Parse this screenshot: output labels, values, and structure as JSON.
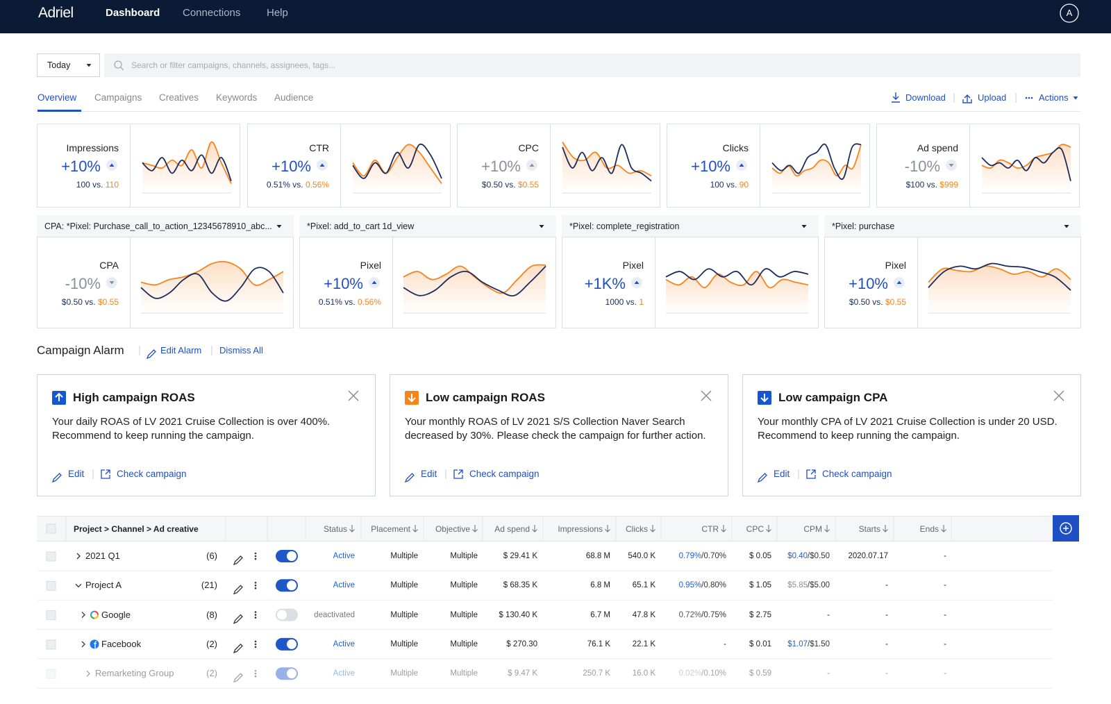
{
  "nav": {
    "brand": "Adriel",
    "items": [
      "Dashboard",
      "Connections",
      "Help"
    ],
    "active": 0,
    "avatar": "A"
  },
  "filter": {
    "date": "Today",
    "search_placeholder": "Search or filter campaigns, channels, assignees, tags..."
  },
  "tabs": {
    "items": [
      "Overview",
      "Campaigns",
      "Creatives",
      "Keywords",
      "Audience"
    ],
    "active": 0,
    "actions": [
      "Download",
      "Upload",
      "Actions"
    ]
  },
  "vs_label": "vs.",
  "sparkline_ylim": [
    0,
    100
  ],
  "sparkline_colors": {
    "current": "#1c2b5e",
    "previous": "#f5841f"
  },
  "kpi_cards": [
    {
      "label": "Impressions",
      "change": "+10%",
      "change_color": "#1f4fc4",
      "direction": "up",
      "current": "100",
      "previous": "110",
      "spark": {
        "current": [
          50,
          35,
          60,
          30,
          55,
          35,
          65,
          30,
          60,
          15
        ],
        "previous": [
          50,
          45,
          40,
          55,
          45,
          75,
          40,
          90,
          50,
          10
        ]
      }
    },
    {
      "label": "CTR",
      "change": "+10%",
      "change_color": "#1f4fc4",
      "direction": "up",
      "current": "0.51%",
      "previous": "0.56%",
      "spark": {
        "current": [
          45,
          20,
          50,
          30,
          70,
          40,
          85,
          65,
          20
        ],
        "previous": [
          50,
          25,
          55,
          30,
          60,
          85,
          70,
          40,
          10
        ]
      }
    },
    {
      "label": "CPC",
      "change": "+10%",
      "change_color": "#8a8f99",
      "direction": "up",
      "current": "$0.50",
      "previous": "$0.55",
      "spark": {
        "current": [
          80,
          40,
          70,
          35,
          60,
          30,
          85,
          40,
          30,
          15
        ],
        "previous": [
          90,
          60,
          55,
          70,
          40,
          45,
          30,
          35,
          25
        ]
      }
    },
    {
      "label": "Clicks",
      "change": "+10%",
      "change_color": "#1f4fc4",
      "direction": "up",
      "current": "100",
      "previous": "90",
      "spark": {
        "current": [
          50,
          35,
          45,
          30,
          60,
          70,
          85,
          40,
          20,
          80,
          85
        ],
        "previous": [
          40,
          30,
          45,
          25,
          35,
          40,
          55,
          50,
          25,
          45,
          40,
          85
        ]
      }
    },
    {
      "label": "Ad spend",
      "change": "-10%",
      "change_color": "#8a8f99",
      "direction": "down",
      "current": "$100",
      "previous": "$999",
      "spark": {
        "current": [
          60,
          45,
          50,
          40,
          55,
          35,
          60,
          50,
          70,
          75,
          15
        ],
        "previous": [
          45,
          40,
          55,
          50,
          40,
          45,
          60,
          65,
          70,
          85,
          80
        ]
      }
    }
  ],
  "pixel_cards": [
    {
      "selector": "CPA: *Pixel: Purchase_call_to_action_12345678910_abc...",
      "label": "CPA",
      "change": "-10%",
      "change_color": "#8a8f99",
      "direction": "down",
      "current": "$0.50",
      "previous": "$0.55",
      "spark": {
        "current": [
          40,
          20,
          30,
          55,
          65,
          30,
          15,
          40,
          75,
          70,
          30
        ],
        "previous": [
          50,
          45,
          55,
          60,
          70,
          85,
          88,
          75,
          45,
          55,
          70
        ]
      }
    },
    {
      "selector": "*Pixel: add_to_cart 1d_view",
      "label": "Pixel",
      "change": "+10%",
      "change_color": "#1f4fc4",
      "direction": "up",
      "current": "0.51%",
      "previous": "0.56%",
      "spark": {
        "current": [
          40,
          25,
          35,
          60,
          70,
          50,
          35,
          25,
          50,
          80
        ],
        "previous": [
          60,
          70,
          55,
          65,
          80,
          60,
          40,
          30,
          55,
          80,
          82
        ]
      }
    },
    {
      "selector": "*Pixel: complete_registration",
      "label": "Pixel",
      "change": "+1K%",
      "change_color": "#1f4fc4",
      "direction": "up",
      "current": "1000",
      "previous": "1",
      "spark": {
        "current": [
          60,
          70,
          55,
          75,
          60,
          70,
          45,
          75,
          60,
          70,
          65
        ],
        "previous": [
          55,
          45,
          60,
          40,
          65,
          50,
          45,
          70,
          40,
          55,
          50,
          45
        ]
      }
    },
    {
      "selector": "*Pixel: purchase",
      "label": "Pixel",
      "change": "+10%",
      "change_color": "#1f4fc4",
      "direction": "up",
      "current": "$0.50",
      "previous": "$0.55",
      "spark": {
        "current": [
          40,
          70,
          80,
          75,
          85,
          80,
          78,
          70,
          60,
          35
        ],
        "previous": [
          50,
          75,
          72,
          70,
          80,
          75,
          65,
          70,
          60,
          75,
          55
        ]
      }
    }
  ],
  "alarm": {
    "title": "Campaign Alarm",
    "edit": "Edit Alarm",
    "dismiss": "Dismiss All",
    "edit_link": "Edit",
    "check_link": "Check campaign",
    "cards": [
      {
        "title": "High campaign ROAS",
        "icon": "up",
        "icon_color": "#1457d1",
        "body": "Your daily ROAS of LV 2021 Cruise Collection is over 400%. Recommend to keep running the campaign."
      },
      {
        "title": "Low campaign ROAS",
        "icon": "down",
        "icon_color": "#f5841f",
        "body": "Your monthly ROAS of LV 2021 S/S Collection Naver Search decreased by 30%. Please check the campaign for further action."
      },
      {
        "title": "Low campaign CPA",
        "icon": "down",
        "icon_color": "#1457d1",
        "body": "Your monthly CPA of LV 2021 Cruise Collection is under 20 USD. Recommend to keep running the campaign."
      }
    ]
  },
  "table": {
    "columns": [
      "Project > Channel > Ad creative",
      "Status",
      "Placement",
      "Objective",
      "Ad spend",
      "Impressions",
      "Clicks",
      "CTR",
      "CPC",
      "CPM",
      "Starts",
      "Ends"
    ],
    "rows": [
      {
        "name": "2021 Q1",
        "count": "(6)",
        "depth": 0,
        "expanded": false,
        "on": true,
        "faded": false,
        "status": "Active",
        "placement": "Multiple",
        "objective": "Multiple",
        "ad_spend": "$ 29.41 K",
        "impressions": "68.8 M",
        "clicks": "540.0 K",
        "ctr": {
          "actual": "0.79%",
          "target": "/0.70%",
          "color": "#1f5fd0"
        },
        "cpc": "$ 0.05",
        "cpm": {
          "actual": "$0.40",
          "target": "/$0.50",
          "color": "#1f5fd0"
        },
        "starts": "2020.07.17",
        "ends": "-"
      },
      {
        "name": "Project A",
        "count": "(21)",
        "depth": 0,
        "expanded": true,
        "on": true,
        "faded": false,
        "status": "Active",
        "placement": "Multiple",
        "objective": "Multiple",
        "ad_spend": "$ 68.35 K",
        "impressions": "6.8 M",
        "clicks": "65.1 K",
        "ctr": {
          "actual": "0.95%",
          "target": "/0.80%",
          "color": "#1f5fd0"
        },
        "cpc": "$ 1.05",
        "cpm": {
          "actual": "$5.85",
          "target": "/$5.00",
          "color": "#8a8f99"
        },
        "starts": "-",
        "ends": "-"
      },
      {
        "name": "Google",
        "count": "(8)",
        "depth": 1,
        "logo": "google",
        "expanded": false,
        "on": false,
        "faded": false,
        "status": "deactivated",
        "placement": "Multiple",
        "objective": "Multiple",
        "ad_spend": "$ 130.40 K",
        "impressions": "6.7 M",
        "clicks": "47.8 K",
        "ctr": {
          "actual": "0.72%",
          "target": "/0.75%",
          "color": "#555"
        },
        "cpc": "$ 2.75",
        "cpm": "-",
        "starts": "-",
        "ends": "-"
      },
      {
        "name": "Facebook",
        "count": "(2)",
        "depth": 1,
        "logo": "facebook",
        "expanded": false,
        "on": true,
        "faded": false,
        "status": "Active",
        "placement": "Multiple",
        "objective": "Multiple",
        "ad_spend": "$ 270.30",
        "impressions": "76.1 K",
        "clicks": "22.1 K",
        "ctr": "-",
        "cpc": "$ 0.01",
        "cpm": {
          "actual": "$1.07",
          "target": "/$1.50",
          "color": "#1f5fd0"
        },
        "starts": "-",
        "ends": "-"
      },
      {
        "name": "Remarketing Group",
        "count": "(2)",
        "depth": 2,
        "expanded": false,
        "on": true,
        "faded": true,
        "status": "Active",
        "placement": "Multiple",
        "objective": "Multiple",
        "ad_spend": "$ 9.47 K",
        "impressions": "250.7 K",
        "clicks": "16.0 K",
        "ctr": {
          "actual": "0.02%",
          "target": "/0.10%",
          "color": "#8a8f99"
        },
        "cpc": "$ 0.59",
        "cpm": "-",
        "starts": "-",
        "ends": "-"
      }
    ]
  }
}
